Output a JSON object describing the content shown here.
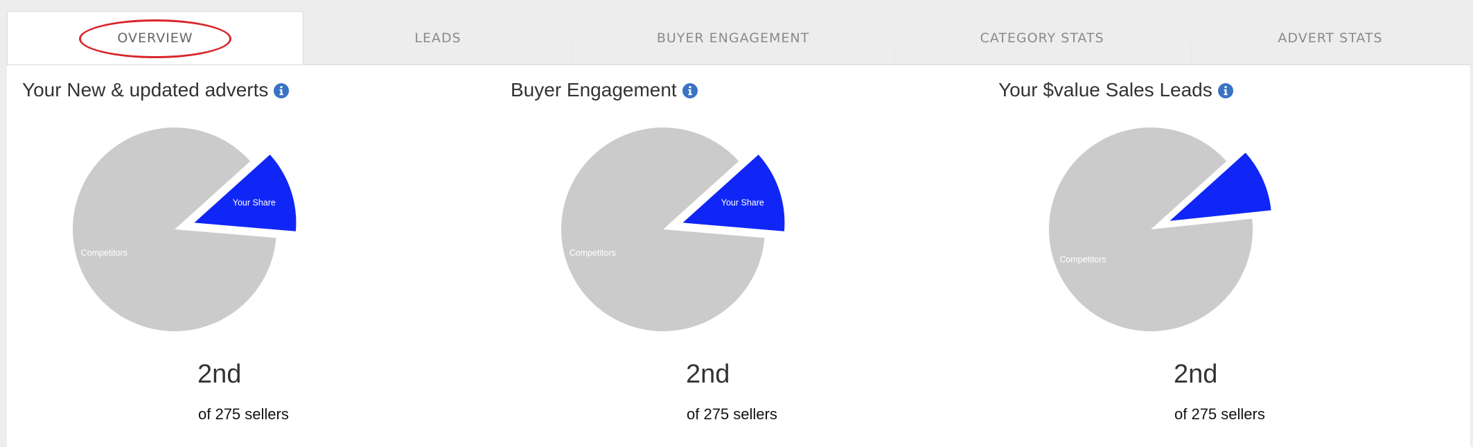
{
  "tabs": [
    {
      "label": "OVERVIEW",
      "active": true
    },
    {
      "label": "LEADS",
      "active": false
    },
    {
      "label": "BUYER ENGAGEMENT",
      "active": false
    },
    {
      "label": "CATEGORY STATS",
      "active": false
    },
    {
      "label": "ADVERT STATS",
      "active": false
    }
  ],
  "colors": {
    "your_share": "#1026f7",
    "competitors": "#cbcbcb",
    "info_icon": "#3b73c4",
    "highlight_ring": "#d9252a"
  },
  "cards": [
    {
      "title": "Your New & updated adverts",
      "rank": "2nd",
      "of_sellers": "of 275 sellers"
    },
    {
      "title": "Buyer Engagement",
      "rank": "2nd",
      "of_sellers": "of 275 sellers"
    },
    {
      "title": "Your $value Sales Leads",
      "rank": "2nd",
      "of_sellers": "of 275 sellers"
    }
  ],
  "chart_data": [
    {
      "type": "pie",
      "title": "Your New & updated adverts",
      "slices": [
        {
          "label": "Your Share",
          "share": 13
        },
        {
          "label": "Competitors",
          "share": 87
        }
      ]
    },
    {
      "type": "pie",
      "title": "Buyer Engagement",
      "slices": [
        {
          "label": "Your Share",
          "share": 13
        },
        {
          "label": "Competitors",
          "share": 87
        }
      ]
    },
    {
      "type": "pie",
      "title": "Your $value Sales Leads",
      "slices": [
        {
          "label": "",
          "share": 10
        },
        {
          "label": "Competitors",
          "share": 90
        }
      ]
    }
  ]
}
